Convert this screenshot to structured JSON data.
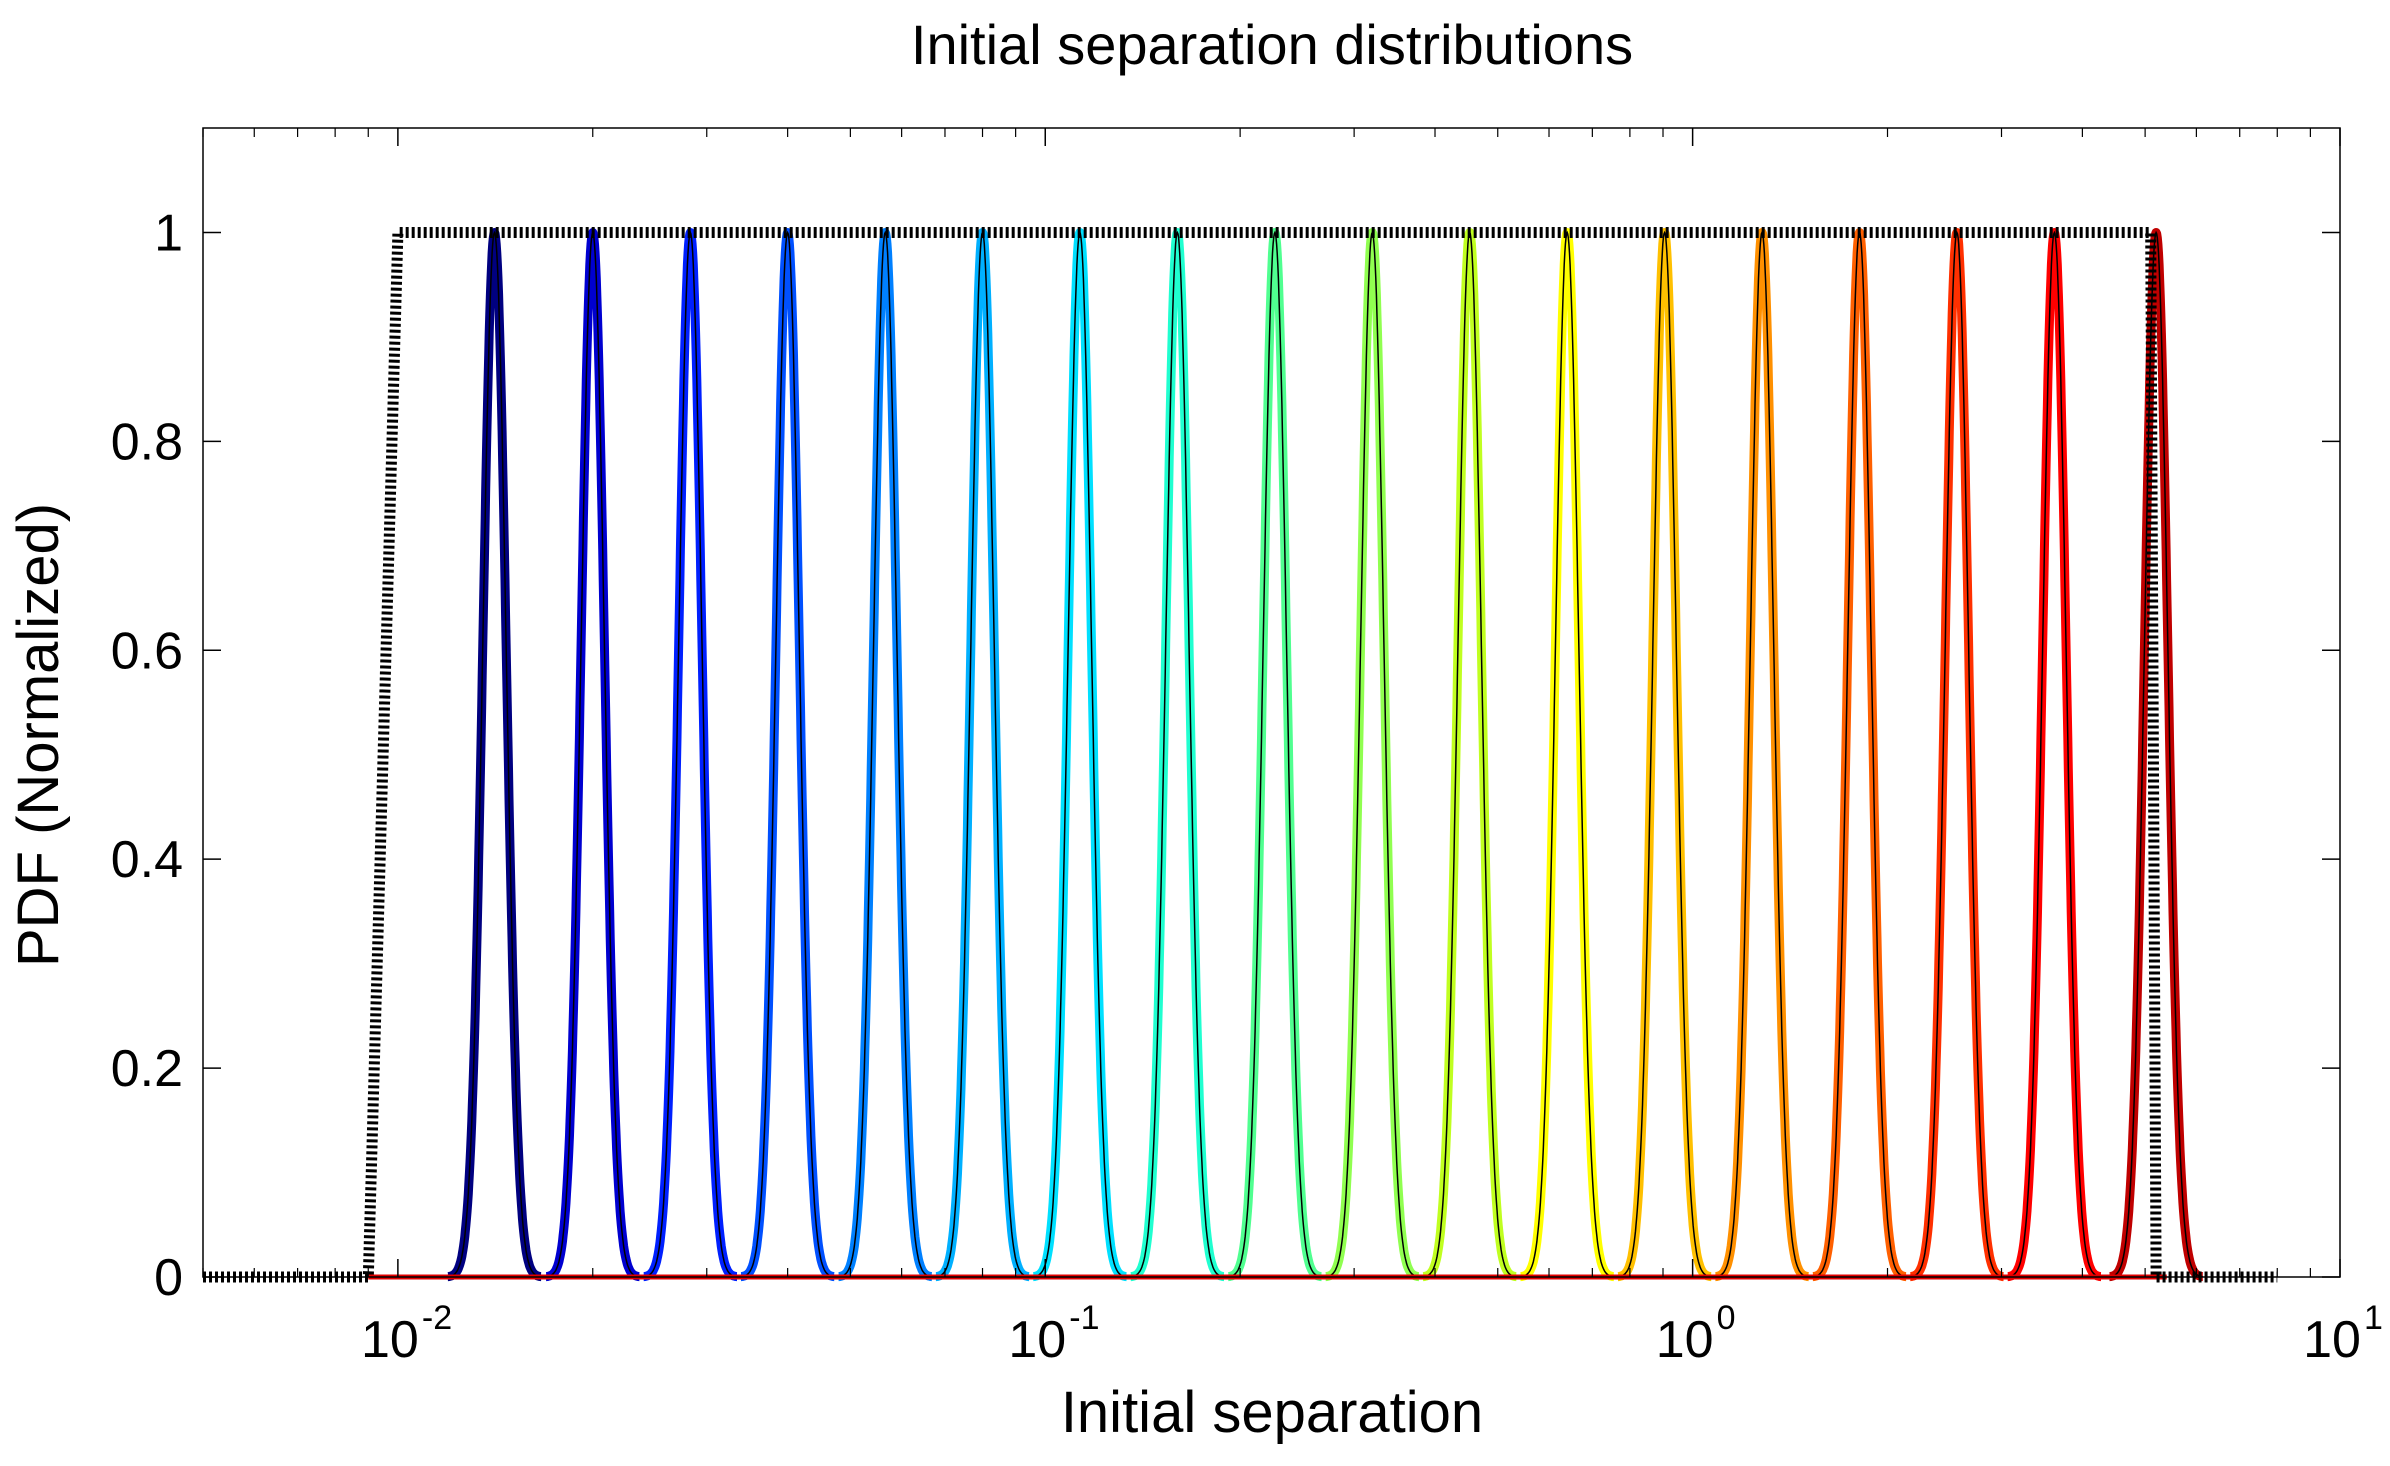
{
  "chart_data": {
    "type": "line",
    "title": "Initial separation distributions",
    "xlabel": "Initial separation",
    "ylabel": "PDF (Normalized)",
    "xscale": "log",
    "xlim": [
      0.005,
      10
    ],
    "ylim": [
      0,
      1.1
    ],
    "grid": false,
    "legend": "none",
    "x_ticks": [
      {
        "base": "10",
        "exp": "-2",
        "value": 0.01
      },
      {
        "base": "10",
        "exp": "-1",
        "value": 0.1
      },
      {
        "base": "10",
        "exp": "0",
        "value": 1
      },
      {
        "base": "10",
        "exp": "1",
        "value": 10
      }
    ],
    "y_ticks": [
      {
        "label": "0",
        "value": 0
      },
      {
        "label": "0.2",
        "value": 0.2
      },
      {
        "label": "0.4",
        "value": 0.4
      },
      {
        "label": "0.6",
        "value": 0.6
      },
      {
        "label": "0.8",
        "value": 0.8
      },
      {
        "label": "1",
        "value": 1
      }
    ],
    "series": [
      {
        "color": "#000080",
        "peak_x": 0.0141,
        "peak_y": 1,
        "width_log10": 0.018
      },
      {
        "color": "#0000d0",
        "peak_x": 0.02,
        "peak_y": 1,
        "width_log10": 0.018
      },
      {
        "color": "#0020ff",
        "peak_x": 0.0283,
        "peak_y": 1,
        "width_log10": 0.018
      },
      {
        "color": "#0050ff",
        "peak_x": 0.04,
        "peak_y": 1,
        "width_log10": 0.018
      },
      {
        "color": "#0080ff",
        "peak_x": 0.0566,
        "peak_y": 1,
        "width_log10": 0.018
      },
      {
        "color": "#00b0ff",
        "peak_x": 0.08,
        "peak_y": 1,
        "width_log10": 0.018
      },
      {
        "color": "#00e0ff",
        "peak_x": 0.1131,
        "peak_y": 1,
        "width_log10": 0.018
      },
      {
        "color": "#20ffd0",
        "peak_x": 0.16,
        "peak_y": 1,
        "width_log10": 0.018
      },
      {
        "color": "#50ff90",
        "peak_x": 0.2263,
        "peak_y": 1,
        "width_log10": 0.018
      },
      {
        "color": "#90ff50",
        "peak_x": 0.32,
        "peak_y": 1,
        "width_log10": 0.018
      },
      {
        "color": "#c0ff20",
        "peak_x": 0.4525,
        "peak_y": 1,
        "width_log10": 0.018
      },
      {
        "color": "#ffff00",
        "peak_x": 0.64,
        "peak_y": 1,
        "width_log10": 0.018
      },
      {
        "color": "#ffc000",
        "peak_x": 0.9051,
        "peak_y": 1,
        "width_log10": 0.018
      },
      {
        "color": "#ff9000",
        "peak_x": 1.28,
        "peak_y": 1,
        "width_log10": 0.018
      },
      {
        "color": "#ff6000",
        "peak_x": 1.8102,
        "peak_y": 1,
        "width_log10": 0.018
      },
      {
        "color": "#ff3000",
        "peak_x": 2.56,
        "peak_y": 1,
        "width_log10": 0.018
      },
      {
        "color": "#ff0000",
        "peak_x": 3.6204,
        "peak_y": 1,
        "width_log10": 0.018
      },
      {
        "color": "#c00000",
        "peak_x": 5.2,
        "peak_y": 1,
        "width_log10": 0.018
      }
    ],
    "envelope": {
      "color": "#000000",
      "style": "dotted",
      "points": [
        [
          0.005,
          0
        ],
        [
          0.009,
          0
        ],
        [
          0.01,
          1
        ],
        [
          5.1,
          1
        ],
        [
          5.2,
          0
        ],
        [
          8.0,
          0
        ]
      ]
    }
  }
}
